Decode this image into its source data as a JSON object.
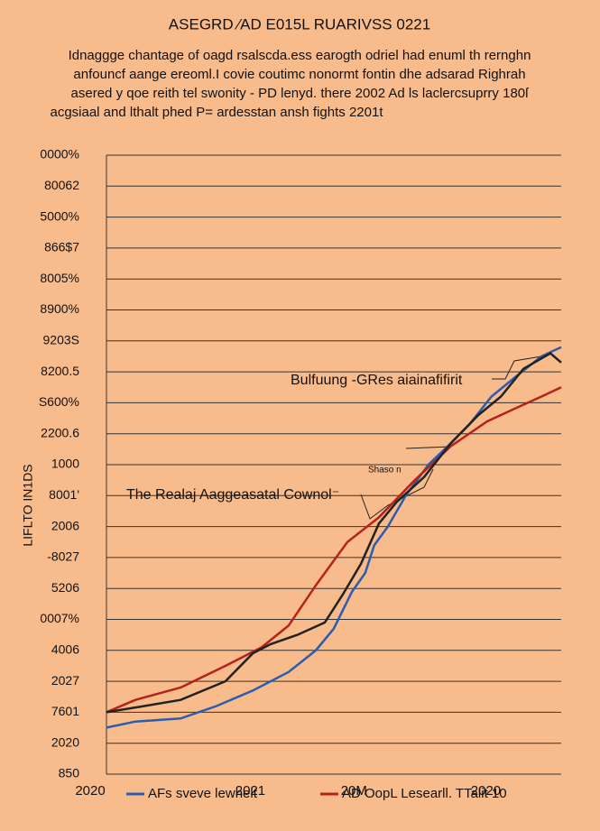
{
  "chart_data": {
    "type": "line",
    "title": "ASEGRD ⁄AD E015L RUARIVSS 0221",
    "subtitle": [
      "Idnaggge chantage of oagd rsalscda.ess earogth odriel had enuml th rernghn",
      "anfouncf aange ereoml.I covie coutimc nonormt fontin dhe adsarad Righrah",
      "asered y qoe reith tel swonity - PD lenyd. there 2002 Ad ls  laclercsuprry 180ſ",
      "acgsiaal and lthalt phed P= ardesstan ansh fights 2201t"
    ],
    "y_label": "LIFLTO IN1DS",
    "annotations": [
      "Bulfuung -GRes  aiainafifirit",
      "Shaso n",
      "The Realaj Aaggeasatal Cownol⁻"
    ],
    "xlim": [
      0,
      100
    ],
    "xticks": [
      {
        "value": 0,
        "label": "2020"
      },
      {
        "value": 34,
        "label": "2021"
      },
      {
        "value": 56,
        "label": "20M"
      },
      {
        "value": 84,
        "label": "2020"
      }
    ],
    "ylim": [
      0,
      20
    ],
    "yticks": [
      {
        "value": 0,
        "label": "850"
      },
      {
        "value": 1,
        "label": "2020"
      },
      {
        "value": 2,
        "label": "7601"
      },
      {
        "value": 3,
        "label": "2027"
      },
      {
        "value": 4,
        "label": "4006"
      },
      {
        "value": 5,
        "label": "0007%"
      },
      {
        "value": 6,
        "label": "5206"
      },
      {
        "value": 7,
        "label": "-8027"
      },
      {
        "value": 8,
        "label": "2006"
      },
      {
        "value": 9,
        "label": "8001'"
      },
      {
        "value": 10,
        "label": "1000"
      },
      {
        "value": 11,
        "label": "2200.6"
      },
      {
        "value": 12,
        "label": "S600%"
      },
      {
        "value": 13,
        "label": "8200.5"
      },
      {
        "value": 14,
        "label": "9203S"
      },
      {
        "value": 15,
        "label": "8900%"
      },
      {
        "value": 16,
        "label": "8005%"
      },
      {
        "value": 17,
        "label": "866$7"
      },
      {
        "value": 18,
        "label": "5000%"
      },
      {
        "value": 19,
        "label": "80062"
      },
      {
        "value": 20,
        "label": "0000%"
      }
    ],
    "grid": true,
    "series": [
      {
        "name": "AFs sveve lewhelt",
        "color": "#2a5db0",
        "x": [
          3.4,
          9.6,
          19.2,
          26.8,
          34.5,
          42.1,
          47.9,
          51.7,
          55.6,
          58.4,
          60.3,
          63.2,
          67.0,
          71.8,
          76.6,
          80.5,
          85.2,
          90.0,
          95.8,
          100
        ],
        "values": [
          1.5,
          1.7,
          1.8,
          2.2,
          2.7,
          3.3,
          4.0,
          4.7,
          5.9,
          6.5,
          7.4,
          8.0,
          9.0,
          10.0,
          10.7,
          11.3,
          12.2,
          12.8,
          13.5,
          13.8
        ]
      },
      {
        "name": "AD OopL Lesearll. TTalit 10",
        "color": "#b5221b",
        "x": [
          3.4,
          9.6,
          19.2,
          28.7,
          36.4,
          42.1,
          47.9,
          54.6,
          61.3,
          68.9,
          76.6,
          84.3,
          90.0,
          95.8,
          100
        ],
        "values": [
          2.0,
          2.4,
          2.8,
          3.5,
          4.1,
          4.8,
          6.1,
          7.5,
          8.3,
          9.5,
          10.6,
          11.4,
          11.8,
          12.2,
          12.5
        ]
      },
      {
        "color": "#222222",
        "x": [
          3.4,
          11.5,
          19.2,
          28.7,
          34.5,
          38.3,
          44.0,
          49.8,
          53.6,
          57.5,
          61.3,
          65.1,
          70.9,
          76.6,
          82.4,
          87.2,
          92.0,
          97.7,
          100
        ],
        "values": [
          2.0,
          2.2,
          2.4,
          3.0,
          3.9,
          4.2,
          4.5,
          4.9,
          5.8,
          6.8,
          8.1,
          8.8,
          9.6,
          10.7,
          11.6,
          12.2,
          13.1,
          13.6,
          13.3
        ]
      }
    ]
  }
}
